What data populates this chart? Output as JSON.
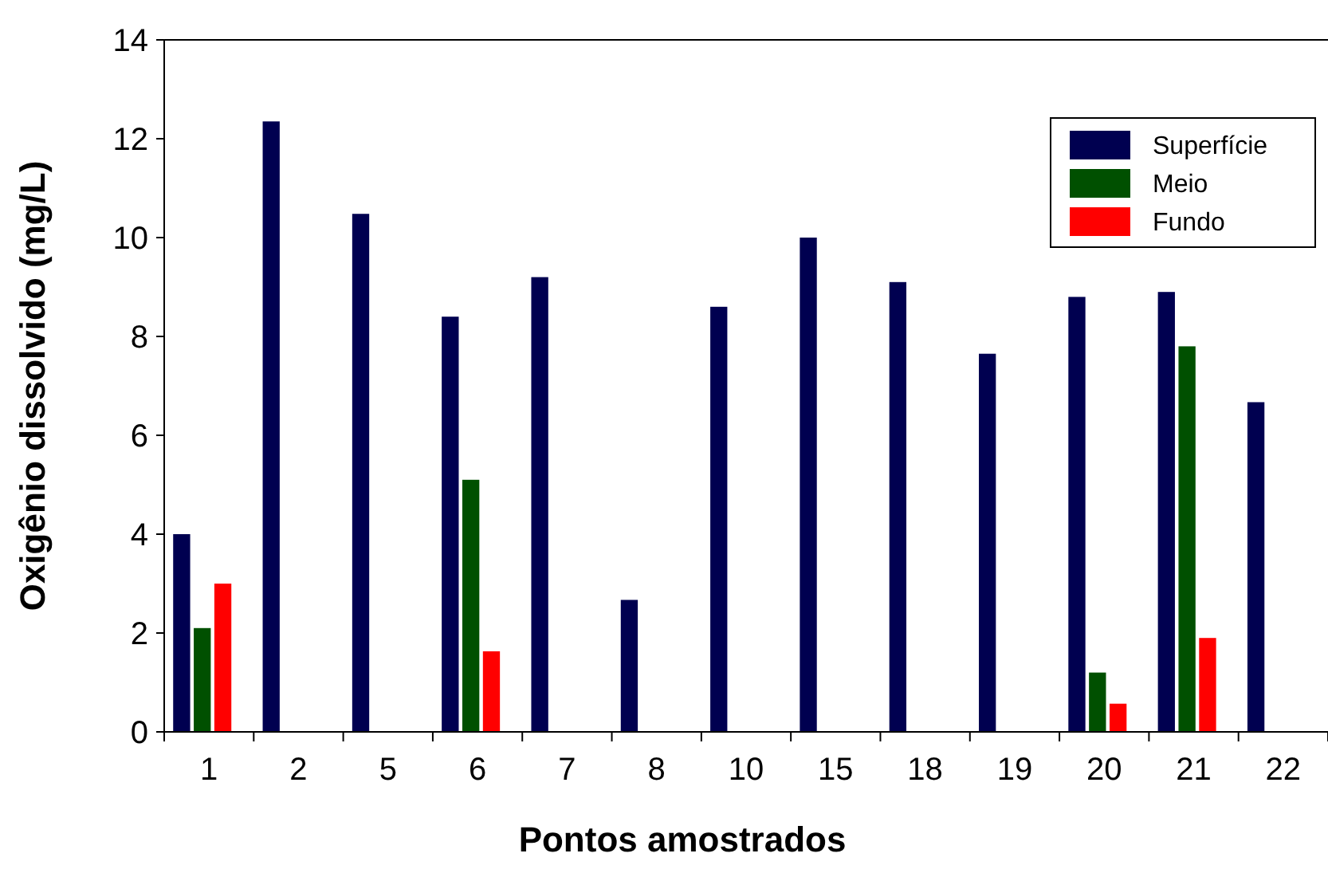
{
  "chart_data": {
    "type": "bar",
    "xlabel": "Pontos amostrados",
    "ylabel": "Oxigênio dissolvido (mg/L)",
    "categories": [
      "1",
      "2",
      "5",
      "6",
      "7",
      "8",
      "10",
      "15",
      "18",
      "19",
      "20",
      "21",
      "22"
    ],
    "series": [
      {
        "name": "Superfície",
        "color": "#000050",
        "values": [
          4.0,
          12.35,
          10.48,
          8.4,
          9.2,
          2.67,
          8.6,
          10.0,
          9.1,
          7.65,
          8.8,
          8.9,
          6.67
        ]
      },
      {
        "name": "Meio",
        "color": "#005000",
        "values": [
          2.1,
          null,
          null,
          5.1,
          null,
          null,
          null,
          null,
          null,
          null,
          1.2,
          7.8,
          null
        ]
      },
      {
        "name": "Fundo",
        "color": "#ff0000",
        "values": [
          3.0,
          null,
          null,
          1.63,
          null,
          null,
          null,
          null,
          null,
          null,
          0.57,
          1.9,
          null
        ]
      }
    ],
    "ylim": [
      0,
      14
    ],
    "yticks": [
      0,
      2,
      4,
      6,
      8,
      10,
      12,
      14
    ],
    "grid": false,
    "legend": "top right"
  }
}
